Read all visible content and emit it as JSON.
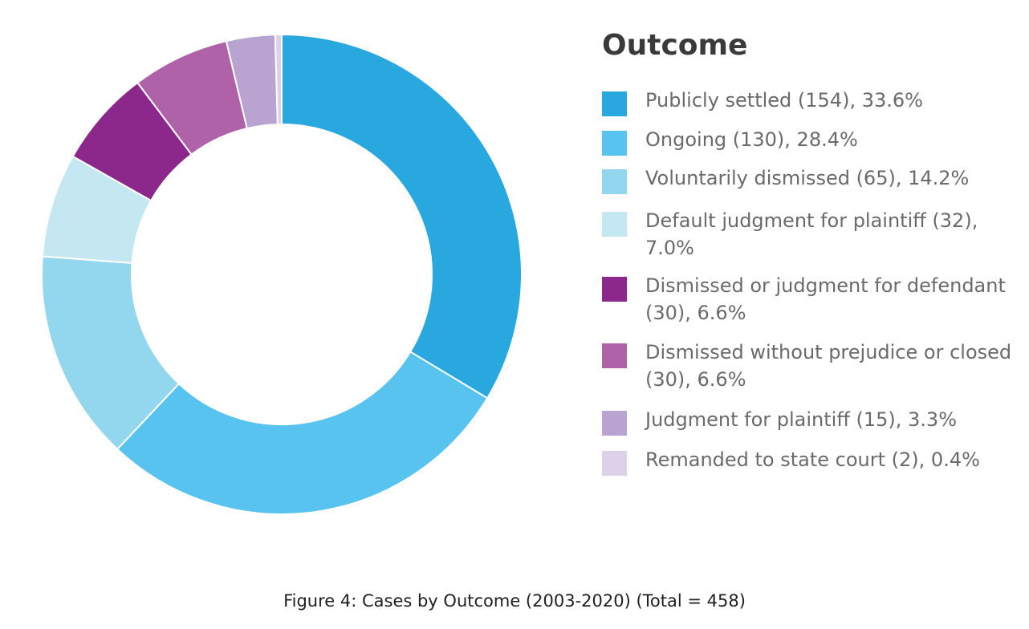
{
  "chart_data": {
    "type": "pie",
    "style": "donut",
    "legend_title": "Outcome",
    "legend_placement": "right",
    "caption": "Figure 4: Cases by Outcome (2003-2020) (Total = 458)",
    "slices": [
      {
        "label": "Publicly settled (154), 33.6%",
        "value": 154,
        "percent": 33.6,
        "color": "#29a8e0"
      },
      {
        "label": "Ongoing (130), 28.4%",
        "value": 130,
        "percent": 28.4,
        "color": "#59c3ef"
      },
      {
        "label": "Voluntarily dismissed (65), 14.2%",
        "value": 65,
        "percent": 14.2,
        "color": "#93d7ef"
      },
      {
        "label": "Default judgment for plaintiff (32), 7.0%",
        "value": 32,
        "percent": 7.0,
        "color": "#c5e7f2"
      },
      {
        "label": "Dismissed or judgment for defendant (30), 6.6%",
        "value": 30,
        "percent": 6.6,
        "color": "#8c288c"
      },
      {
        "label": "Dismissed without prejudice or closed (30), 6.6%",
        "value": 30,
        "percent": 6.6,
        "color": "#b062a9"
      },
      {
        "label": "Judgment for plaintiff (15), 3.3%",
        "value": 15,
        "percent": 3.3,
        "color": "#b9a3d1"
      },
      {
        "label": "Remanded to state court (2), 0.4%",
        "value": 2,
        "percent": 0.4,
        "color": "#ddd0e9"
      }
    ]
  }
}
